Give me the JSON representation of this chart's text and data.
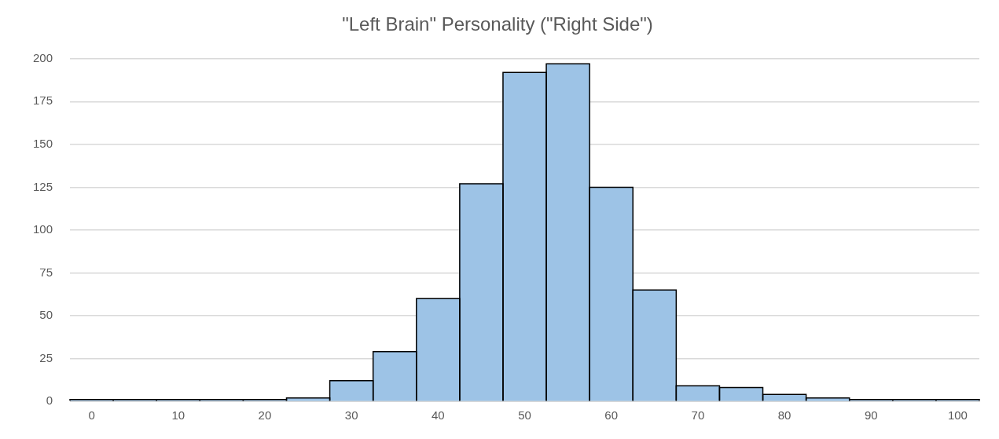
{
  "chart_data": {
    "type": "histogram",
    "title": "\"Left Brain\" Personality (\"Right Side\")",
    "bins": [
      -2.5,
      2.5,
      7.5,
      12.5,
      17.5,
      22.5,
      27.5,
      32.5,
      37.5,
      42.5,
      47.5,
      52.5,
      57.5,
      62.5,
      67.5,
      72.5,
      77.5,
      82.5,
      87.5,
      92.5,
      97.5,
      102.5
    ],
    "values": [
      1,
      1,
      1,
      1,
      1,
      2,
      12,
      29,
      60,
      127,
      192,
      197,
      125,
      65,
      9,
      8,
      4,
      2,
      1,
      1,
      1
    ],
    "color": "#9dc3e6",
    "xlim": [
      -2.5,
      102.5
    ],
    "xticks": [
      0,
      10,
      20,
      30,
      40,
      50,
      60,
      70,
      80,
      90,
      100
    ],
    "ylim": [
      0,
      200
    ],
    "yticks": [
      0,
      25,
      50,
      75,
      100,
      125,
      150,
      175,
      200
    ],
    "grid": "y",
    "legend": false
  }
}
